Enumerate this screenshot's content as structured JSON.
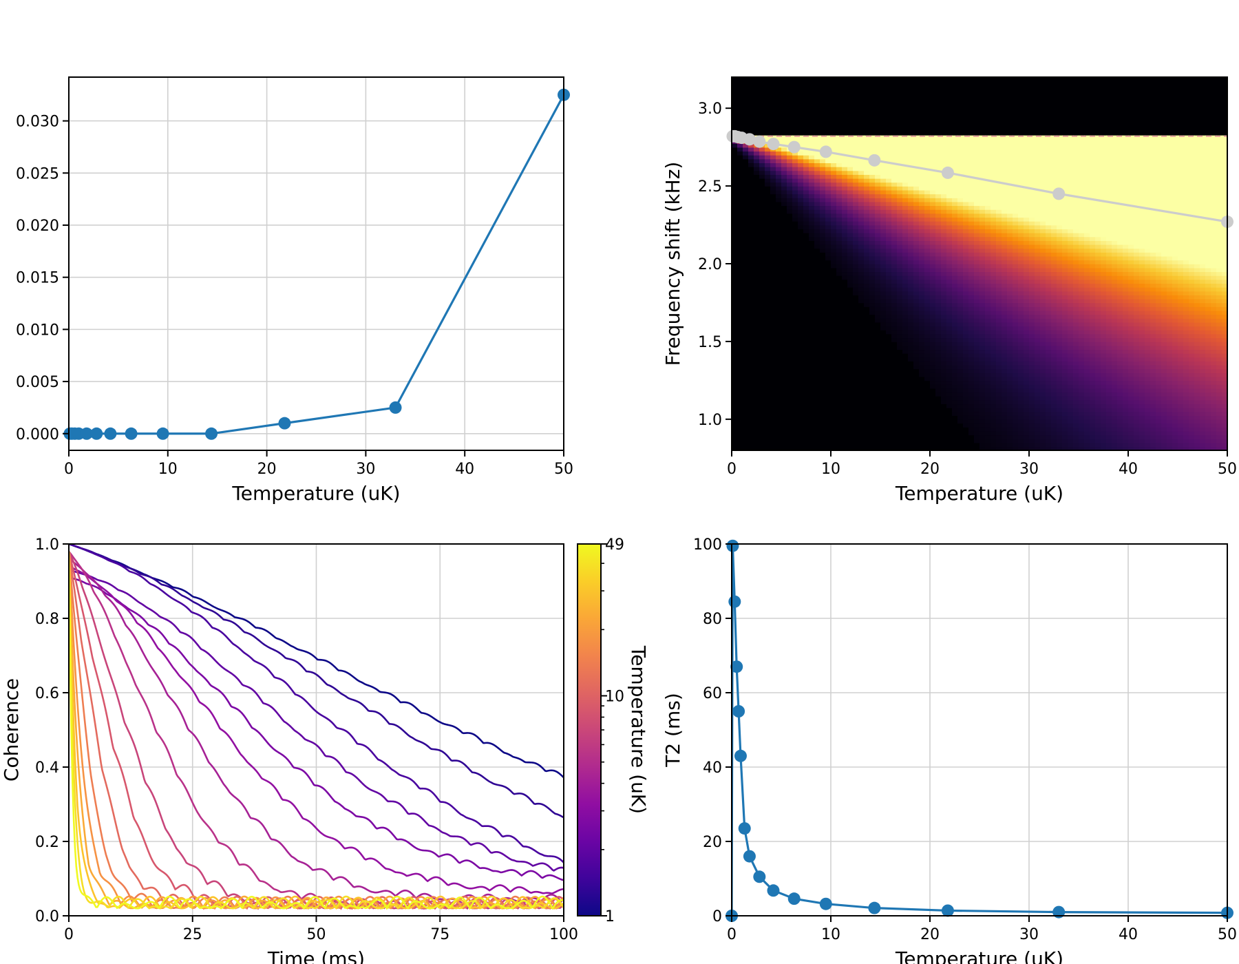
{
  "chart_data": [
    {
      "type": "line",
      "title": "",
      "xlabel": "Temperature (uK)",
      "ylabel": "",
      "xlim": [
        0,
        50
      ],
      "ylim": [
        -0.0016,
        0.0342
      ],
      "xticks": [
        0,
        10,
        20,
        30,
        40,
        50
      ],
      "yticks": [
        0.0,
        0.005,
        0.01,
        0.015,
        0.02,
        0.025,
        0.03
      ],
      "ytick_labels": [
        "0.000",
        "0.005",
        "0.010",
        "0.015",
        "0.020",
        "0.025",
        "0.030"
      ],
      "grid": true,
      "series": [
        {
          "color": "#1f77b4",
          "marker": "circle",
          "x": [
            0.1,
            0.3,
            0.6,
            1.0,
            1.8,
            2.8,
            4.2,
            6.3,
            9.5,
            14.4,
            21.8,
            33.0,
            50.0
          ],
          "y": [
            0,
            0,
            0,
            0,
            0,
            0,
            0,
            0,
            0,
            0,
            0.001,
            0.0025,
            0.0325
          ]
        }
      ]
    },
    {
      "type": "heatmap",
      "title": "",
      "xlabel": "Temperature (uK)",
      "ylabel": "Frequency shift (kHz)",
      "xlim": [
        0,
        50
      ],
      "ylim": [
        0.8,
        3.2
      ],
      "xticks": [
        0,
        10,
        20,
        30,
        40,
        50
      ],
      "yticks": [
        1.0,
        1.5,
        2.0,
        2.5,
        3.0
      ],
      "ytick_labels": [
        "1.0",
        "1.5",
        "2.0",
        "2.5",
        "3.0"
      ],
      "colormap": "inferno",
      "ceiling_line_y": 2.82,
      "ceiling_line_color": "#e8a0a0",
      "overlay_series": {
        "color": "#cccccc",
        "marker": "circle",
        "x": [
          0.1,
          0.3,
          0.6,
          1.0,
          1.8,
          2.8,
          4.2,
          6.3,
          9.5,
          14.4,
          21.8,
          33.0,
          50.0
        ],
        "y": [
          2.82,
          2.82,
          2.815,
          2.81,
          2.8,
          2.785,
          2.77,
          2.75,
          2.72,
          2.665,
          2.585,
          2.45,
          2.27
        ]
      }
    },
    {
      "type": "line",
      "title": "",
      "xlabel": "Time (ms)",
      "ylabel": "Coherence",
      "xlim": [
        0,
        100
      ],
      "ylim": [
        0,
        1
      ],
      "xticks": [
        0,
        25,
        50,
        75,
        100
      ],
      "yticks": [
        0.0,
        0.2,
        0.4,
        0.6,
        0.8,
        1.0
      ],
      "ytick_labels": [
        "0.0",
        "0.2",
        "0.4",
        "0.6",
        "0.8",
        "1.0"
      ],
      "grid": true,
      "colormap": "plasma",
      "colorbar": {
        "label": "Temperature (uK)",
        "scale": "log",
        "min": 1,
        "max": 49,
        "ticks": [
          1,
          10,
          49
        ],
        "tick_labels": [
          "1",
          "10",
          "49"
        ]
      },
      "curves": [
        {
          "temperature": 1.0,
          "tau": 100,
          "gauss": 0.52,
          "floor": 0.0
        },
        {
          "temperature": 1.3,
          "tau": 84,
          "gauss": 0.62,
          "floor": 0.0
        },
        {
          "temperature": 1.6,
          "tau": 68,
          "gauss": 0.7,
          "floor": 0.0
        },
        {
          "temperature": 2.0,
          "tau": 56,
          "gauss": 0.72,
          "floor": 0.07
        },
        {
          "temperature": 2.6,
          "tau": 46,
          "gauss": 0.72,
          "floor": 0.09
        },
        {
          "temperature": 3.3,
          "tau": 38,
          "gauss": 0.7,
          "floor": 0.06
        },
        {
          "temperature": 4.2,
          "tau": 30,
          "gauss": 0.68,
          "floor": 0.04
        },
        {
          "temperature": 5.3,
          "tau": 22,
          "gauss": 0.6,
          "floor": 0.02
        },
        {
          "temperature": 6.8,
          "tau": 15,
          "gauss": 0.5,
          "floor": 0.02
        },
        {
          "temperature": 8.6,
          "tau": 10.5,
          "gauss": 0.4,
          "floor": 0.02
        },
        {
          "temperature": 11,
          "tau": 7,
          "gauss": 0.3,
          "floor": 0.02
        },
        {
          "temperature": 14,
          "tau": 4.5,
          "gauss": 0.2,
          "floor": 0.02
        },
        {
          "temperature": 18,
          "tau": 3.0,
          "gauss": 0.1,
          "floor": 0.02
        },
        {
          "temperature": 23,
          "tau": 2.0,
          "gauss": 0.05,
          "floor": 0.02
        },
        {
          "temperature": 30,
          "tau": 1.4,
          "gauss": 0.0,
          "floor": 0.02
        },
        {
          "temperature": 38,
          "tau": 1.0,
          "gauss": 0.0,
          "floor": 0.02
        },
        {
          "temperature": 49,
          "tau": 0.7,
          "gauss": 0.0,
          "floor": 0.02
        }
      ]
    },
    {
      "type": "line",
      "title": "",
      "xlabel": "Temperature (uK)",
      "ylabel": "T2 (ms)",
      "xlim": [
        0,
        50
      ],
      "ylim": [
        0,
        100
      ],
      "xticks": [
        0,
        10,
        20,
        30,
        40,
        50
      ],
      "yticks": [
        0,
        20,
        40,
        60,
        80,
        100
      ],
      "ytick_labels": [
        "0",
        "20",
        "40",
        "60",
        "80",
        "100"
      ],
      "grid": true,
      "series": [
        {
          "color": "#1f77b4",
          "marker": "circle",
          "x": [
            0.0,
            0.1,
            0.3,
            0.5,
            0.7,
            0.9,
            1.3,
            1.8,
            2.8,
            4.2,
            6.3,
            9.5,
            14.4,
            21.8,
            33.0,
            50.0
          ],
          "y": [
            0.0,
            99.5,
            84.5,
            67,
            55,
            43,
            23.5,
            16,
            10.5,
            6.8,
            4.6,
            3.2,
            2.1,
            1.4,
            1.0,
            0.8
          ]
        }
      ]
    }
  ]
}
